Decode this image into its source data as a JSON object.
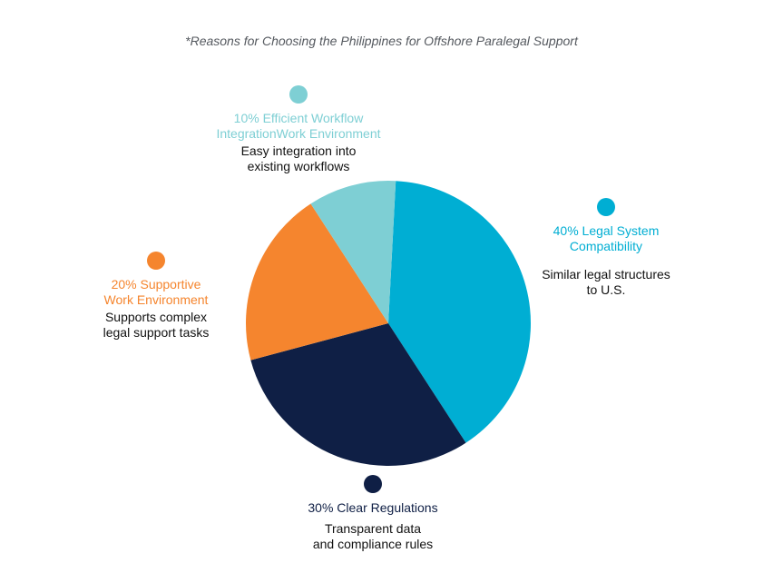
{
  "chart_data": {
    "type": "pie",
    "title": "*Reasons for Choosing the Philippines for Offshore Paralegal Support",
    "slices": [
      {
        "category": "Legal System Compatibility",
        "value": 40,
        "heading": "40% Legal System\nCompatibility",
        "description": "Similar legal structures\nto U.S.",
        "color": "#00aed3"
      },
      {
        "category": "Clear Regulations",
        "value": 30,
        "heading": "30% Clear Regulations",
        "description": "Transparent data\nand compliance rules",
        "color": "#0f1f45"
      },
      {
        "category": "Supportive Work Environment",
        "value": 20,
        "heading": "20% Supportive\nWork Environment",
        "description": "Supports complex\nlegal support tasks",
        "color": "#f5852e"
      },
      {
        "category": "Efficient Workflow Integration",
        "value": 10,
        "heading": "10% Efficient Workflow\nIntegrationWork Environment",
        "description": "Easy integration into\nexisting workflows",
        "color": "#7ecfd4"
      }
    ]
  }
}
